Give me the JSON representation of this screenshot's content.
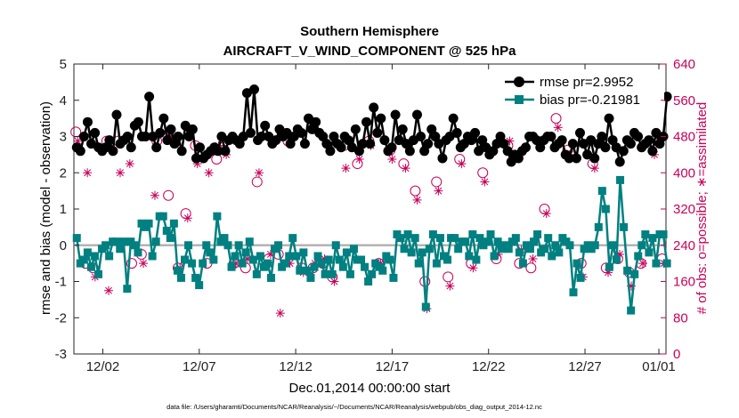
{
  "chart_data": {
    "type": "line",
    "title": "Southern Hemisphere",
    "subtitle": "AIRCRAFT_V_WIND_COMPONENT @ 525 hPa",
    "xlabel": "Dec.01,2014 00:00:00 start",
    "ylabel": "rmse and bias (model - observation)",
    "y2label": "# of obs: o=possible; ∗=assimilated",
    "footnote": "data file: /Users/gharamti/Documents/NCAR/Reanalysis/~/Documents/NCAR/Reanalysis/webpub/obs_diag_output_2014-12.nc",
    "xlim": [
      0.5,
      31.2
    ],
    "ylim": [
      -3,
      5
    ],
    "y2lim": [
      0,
      640
    ],
    "xticks": [
      2,
      7,
      12,
      17,
      22,
      27,
      32
    ],
    "xtick_labels": [
      "12/02",
      "12/07",
      "12/12",
      "12/17",
      "12/22",
      "12/27",
      "01/01"
    ],
    "yticks": [
      -3,
      -2,
      -1,
      0,
      1,
      2,
      3,
      4,
      5
    ],
    "ytick_labels": [
      "-3",
      "-2",
      "-1",
      "0",
      "1",
      "2",
      "3",
      "4",
      "5"
    ],
    "y2ticks": [
      0,
      80,
      160,
      240,
      320,
      400,
      480,
      560,
      640
    ],
    "y2tick_labels": [
      "0",
      "80",
      "160",
      "240",
      "320",
      "400",
      "480",
      "560",
      "640"
    ],
    "zero_line": 0,
    "legend_position": "top-right",
    "colors": {
      "rmse": "#000000",
      "bias": "#008080",
      "obs": "#c8005a",
      "zero": "#b3b3b3"
    },
    "series": [
      {
        "name": "rmse pr=2.9952",
        "axis": "left",
        "values": [
          2.7,
          2.6,
          3.0,
          3.4,
          2.8,
          3.1,
          2.7,
          2.6,
          2.7,
          2.9,
          2.6,
          3.6,
          2.8,
          2.9,
          3.0,
          2.7,
          3.3,
          3.4,
          3.0,
          3.0,
          4.1,
          3.0,
          2.7,
          3.1,
          3.5,
          2.9,
          3.2,
          2.8,
          3.0,
          2.6,
          3.3,
          3.0,
          3.2,
          2.4,
          2.7,
          2.4,
          2.5,
          2.6,
          2.7,
          2.6,
          3.0,
          2.6,
          2.9,
          3.0,
          2.9,
          2.8,
          3.0,
          4.2,
          3.1,
          4.3,
          2.9,
          3.0,
          3.3,
          3.0,
          2.8,
          2.9,
          3.2,
          3.0,
          3.1,
          2.8,
          3.0,
          3.2,
          3.1,
          2.8,
          3.5,
          3.2,
          3.4,
          3.1,
          3.0,
          2.8,
          2.6,
          3.0,
          2.8,
          2.7,
          3.0,
          2.9,
          2.7,
          3.2,
          2.6,
          2.8,
          3.4,
          2.8,
          3.8,
          3.1,
          3.5,
          2.9,
          2.6,
          2.7,
          3.6,
          2.9,
          3.2,
          2.8,
          2.6,
          2.9,
          3.6,
          3.0,
          2.6,
          2.8,
          3.2,
          3.0,
          2.8,
          2.4,
          2.9,
          3.0,
          3.5,
          3.1,
          2.7,
          2.8,
          3.0,
          2.9,
          3.1,
          2.6,
          2.9,
          2.7,
          2.5,
          2.6,
          2.8,
          3.0,
          2.8,
          2.6,
          2.3,
          2.5,
          2.4,
          2.6,
          2.7,
          3.0,
          3.0,
          2.9,
          2.7,
          2.9,
          3.0,
          3.0,
          2.7,
          2.8,
          2.9,
          2.5,
          2.4,
          2.8,
          2.4,
          3.1,
          2.8,
          2.5,
          2.9,
          2.4,
          2.8,
          3.0,
          2.7,
          3.5,
          2.9,
          2.7,
          2.3,
          2.6,
          2.9,
          2.8,
          3.1,
          3.0,
          2.7,
          2.8,
          2.9,
          2.6,
          3.1,
          2.8,
          3.0,
          4.1
        ]
      },
      {
        "name": "bias pr=-0.21981",
        "axis": "left",
        "values": [
          0.2,
          -0.5,
          -0.4,
          -0.2,
          -0.6,
          -0.3,
          -0.8,
          -0.1,
          0.0,
          -0.3,
          0.1,
          0.1,
          -0.1,
          0.1,
          -1.2,
          0.1,
          0.0,
          -0.2,
          0.6,
          0.5,
          0.6,
          -0.3,
          0.1,
          0.8,
          0.8,
          0.4,
          0.2,
          0.6,
          -0.7,
          -0.9,
          -0.4,
          0.0,
          -0.5,
          -0.9,
          -1.1,
          -0.5,
          0.0,
          -0.2,
          -0.4,
          0.8,
          0.1,
          0.2,
          0.0,
          -0.6,
          -0.3,
          0.0,
          -0.5,
          -0.2,
          0.1,
          -0.4,
          -0.8,
          -0.3,
          -0.6,
          -0.5,
          -0.9,
          -0.1,
          0.0,
          -0.6,
          -0.5,
          -0.3,
          0.2,
          -0.3,
          -0.7,
          -0.2,
          -0.7,
          -0.9,
          -0.6,
          -0.3,
          -0.5,
          -0.8,
          -0.4,
          -0.8,
          0.0,
          -0.4,
          -0.6,
          -0.2,
          -0.8,
          -0.1,
          -0.4,
          -0.4,
          -0.6,
          -1.0,
          -0.8,
          -0.5,
          -0.6,
          -0.7,
          -0.3,
          -0.4,
          -0.9,
          0.3,
          0.2,
          -0.1,
          0.3,
          -0.2,
          0.2,
          -0.5,
          -0.2,
          -1.7,
          -0.1,
          0.3,
          -0.5,
          0.2,
          -0.3,
          -0.4,
          0.2,
          0.2,
          -0.1,
          0.1,
          0.1,
          -0.3,
          0.3,
          -0.4,
          0.2,
          0.0,
          0.1,
          0.3,
          -0.3,
          0.1,
          -0.1,
          0.0,
          -0.1,
          0.1,
          0.2,
          -0.2,
          -0.5,
          0.0,
          -0.1,
          0.1,
          0.3,
          -0.2,
          -0.1,
          0.2,
          -0.3,
          0.0,
          -0.2,
          0.2,
          0.1,
          0.0,
          -1.3,
          -0.5,
          -0.9,
          -0.1,
          0.0,
          -0.1,
          0.0,
          0.5,
          1.5,
          1.0,
          -0.6,
          0.0,
          -0.4,
          1.8,
          0.5,
          -0.7,
          -1.8,
          -0.8,
          -0.3,
          0.0,
          0.3,
          -0.2,
          0.2,
          -0.5,
          0.3,
          0.3,
          -0.5
        ]
      }
    ],
    "obs_possible": {
      "x": [
        0.6,
        1.1,
        1.5,
        2.2,
        2.8,
        3.5,
        4.0,
        4.8,
        5.4,
        5.9,
        6.3,
        6.8,
        7.4,
        7.9,
        8.3,
        8.8,
        9.4,
        10.0,
        10.6,
        11.1,
        11.6,
        12.3,
        12.9,
        13.4,
        13.9,
        14.5,
        15.2,
        15.8,
        16.3,
        16.9,
        17.6,
        18.2,
        18.7,
        19.3,
        19.9,
        20.5,
        21.1,
        21.7,
        22.4,
        23.0,
        23.6,
        24.2,
        24.9,
        25.5,
        26.1,
        26.8,
        27.4,
        28.1,
        28.7,
        29.3,
        29.9,
        30.5,
        31.0
      ],
      "y": [
        490,
        200,
        190,
        470,
        470,
        200,
        220,
        470,
        350,
        190,
        310,
        460,
        200,
        430,
        450,
        200,
        190,
        380,
        210,
        220,
        470,
        190,
        190,
        200,
        170,
        460,
        420,
        470,
        200,
        450,
        420,
        360,
        160,
        380,
        170,
        430,
        200,
        400,
        210,
        460,
        200,
        190,
        320,
        520,
        450,
        200,
        420,
        190,
        210,
        180,
        200,
        470,
        210
      ]
    },
    "obs_assimilated": {
      "x": [
        0.7,
        1.2,
        1.6,
        2.3,
        2.9,
        3.4,
        4.1,
        4.7,
        5.5,
        6.0,
        6.4,
        6.9,
        7.5,
        8.0,
        8.4,
        8.9,
        9.5,
        10.1,
        10.7,
        11.2,
        11.7,
        12.4,
        13.0,
        13.5,
        14.0,
        14.6,
        15.3,
        15.9,
        16.4,
        17.0,
        17.7,
        18.3,
        18.8,
        19.4,
        20.0,
        20.6,
        21.2,
        21.8,
        22.5,
        23.1,
        23.7,
        24.3,
        25.0,
        25.6,
        26.2,
        26.9,
        27.5,
        28.2,
        28.8,
        29.4,
        30.0,
        30.6,
        31.1
      ],
      "y": [
        470,
        400,
        170,
        140,
        400,
        420,
        200,
        350,
        480,
        190,
        300,
        420,
        400,
        460,
        440,
        200,
        210,
        400,
        220,
        90,
        200,
        180,
        200,
        210,
        160,
        410,
        430,
        460,
        200,
        430,
        410,
        340,
        100,
        360,
        150,
        420,
        190,
        380,
        220,
        470,
        230,
        210,
        310,
        500,
        440,
        170,
        410,
        180,
        220,
        150,
        200,
        440,
        200
      ]
    }
  }
}
